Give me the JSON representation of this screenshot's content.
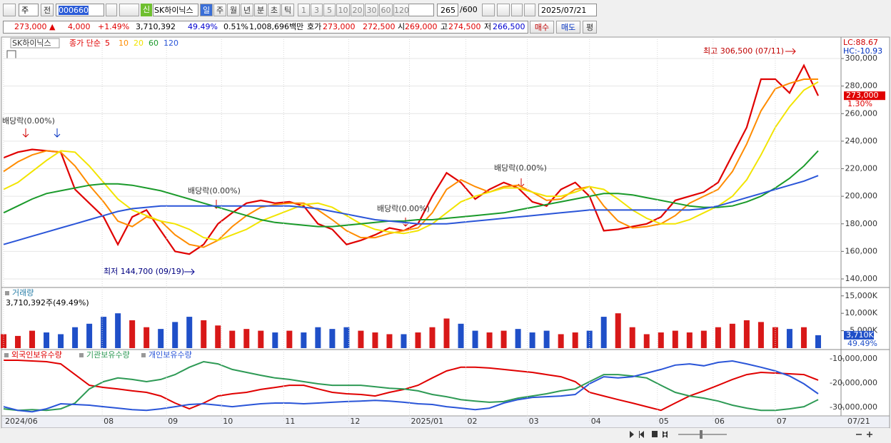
{
  "toolbar": {
    "market": "주",
    "kind": "전",
    "code": "000660",
    "badge": "신",
    "name": "SK하이닉스",
    "periods": [
      "일",
      "주",
      "월",
      "년",
      "분",
      "초",
      "틱"
    ],
    "intervals": [
      "1",
      "3",
      "5",
      "10",
      "20",
      "30",
      "60",
      "120"
    ],
    "count": "265",
    "max": "/600",
    "date": "2025/07/21"
  },
  "quote": {
    "price": "273,000 ▲",
    "change": "4,000",
    "rate": "+1.49%",
    "volume": "3,710,392",
    "volume_rate": "49.49%",
    "turnover": "0.51%",
    "amount": "1,008,696백만",
    "bid_label": "호가",
    "ask": "273,000",
    "bid": "272,500",
    "open_label": "시",
    "open": "269,000",
    "high_label": "고",
    "high": "274,500",
    "low_label": "저",
    "low": "266,500",
    "buy": "매수",
    "sell": "매도",
    "avg": "평"
  },
  "chart_data": [
    {
      "type": "line",
      "title": "SK하이닉스",
      "subtitle": "종가 단순",
      "lc": "LC:88.67",
      "hc": "HC:-10.93",
      "current_label": "273,000",
      "change_label": "1.30%",
      "annotations": [
        "최고 306,500 (07/11)",
        "최저 144,700 (09/19)",
        "배당락(0.00%)",
        "배당락(0.00%)",
        "배당락(0.00%)",
        "배당락(0.00%)"
      ],
      "xlim": [
        0,
        58.6
      ],
      "ylim": [
        134300,
        314000
      ],
      "yticks": [
        {
          "value": 140000,
          "label": "140,000"
        },
        {
          "value": 160000,
          "label": "160,000"
        },
        {
          "value": 180000,
          "label": "180,000"
        },
        {
          "value": 200000,
          "label": "200,000"
        },
        {
          "value": 220000,
          "label": "220,000"
        },
        {
          "value": 240000,
          "label": "240,000"
        },
        {
          "value": 260000,
          "label": "260,000"
        },
        {
          "value": 280000,
          "label": "280,000"
        },
        {
          "value": 300000,
          "label": "300,000"
        }
      ],
      "grid": true,
      "series": [
        {
          "name": "5",
          "color": "#e00000",
          "values": [
            228000,
            232000,
            234000,
            233000,
            232000,
            205000,
            195000,
            185000,
            165000,
            185000,
            190000,
            175000,
            160000,
            158000,
            165000,
            180000,
            188000,
            195000,
            197000,
            195000,
            196000,
            193000,
            180000,
            176000,
            165000,
            168000,
            172000,
            177000,
            175000,
            180000,
            200000,
            217000,
            210000,
            198000,
            205000,
            210000,
            206000,
            196000,
            193000,
            205000,
            210000,
            200000,
            175000,
            176000,
            178000,
            180000,
            185000,
            197000,
            200000,
            203000,
            210000,
            230000,
            250000,
            285000,
            285000,
            275000,
            295000,
            273000
          ]
        },
        {
          "name": "10",
          "color": "#ff8c00",
          "values": [
            218000,
            225000,
            230000,
            233000,
            232000,
            222000,
            208000,
            196000,
            182000,
            178000,
            185000,
            182000,
            172000,
            165000,
            163000,
            168000,
            178000,
            186000,
            192000,
            194000,
            195000,
            195000,
            190000,
            183000,
            175000,
            170000,
            170000,
            173000,
            175000,
            177000,
            188000,
            205000,
            212000,
            207000,
            203000,
            207000,
            208000,
            203000,
            197000,
            198000,
            205000,
            207000,
            193000,
            182000,
            177000,
            178000,
            180000,
            186000,
            195000,
            200000,
            205000,
            218000,
            238000,
            262000,
            278000,
            282000,
            285000,
            285000
          ]
        },
        {
          "name": "20",
          "color": "#f2e400",
          "values": [
            205000,
            210000,
            218000,
            226000,
            233000,
            232000,
            222000,
            210000,
            198000,
            190000,
            186000,
            182000,
            180000,
            176000,
            170000,
            168000,
            172000,
            176000,
            182000,
            186000,
            190000,
            194000,
            195000,
            192000,
            186000,
            180000,
            176000,
            174000,
            173000,
            175000,
            180000,
            188000,
            196000,
            200000,
            203000,
            206000,
            206000,
            203000,
            200000,
            200000,
            203000,
            207000,
            205000,
            198000,
            190000,
            184000,
            180000,
            180000,
            183000,
            188000,
            193000,
            200000,
            212000,
            230000,
            250000,
            265000,
            277000,
            283000
          ]
        },
        {
          "name": "60",
          "color": "#1a9a2a",
          "values": [
            188000,
            193000,
            198000,
            202000,
            204000,
            206000,
            208000,
            209000,
            209000,
            208000,
            206000,
            204000,
            201000,
            198000,
            195000,
            192000,
            189000,
            186000,
            183000,
            181000,
            180000,
            179000,
            178000,
            178000,
            179000,
            180000,
            181000,
            182000,
            182000,
            183000,
            183000,
            184000,
            185000,
            186000,
            187000,
            188000,
            190000,
            192000,
            194000,
            196000,
            198000,
            200000,
            202000,
            202000,
            201000,
            199000,
            197000,
            195000,
            193000,
            192000,
            192000,
            193000,
            196000,
            200000,
            206000,
            213000,
            222000,
            233000
          ]
        },
        {
          "name": "120",
          "color": "#2a55d8",
          "values": [
            165000,
            168000,
            171000,
            174000,
            177000,
            180000,
            183000,
            186000,
            189000,
            191000,
            192000,
            193000,
            193000,
            193000,
            193000,
            193000,
            193000,
            193000,
            193000,
            193000,
            193000,
            192000,
            191000,
            189000,
            187000,
            185000,
            183000,
            182000,
            181000,
            180000,
            180000,
            180000,
            181000,
            182000,
            183000,
            184000,
            185000,
            186000,
            187000,
            188000,
            189000,
            190000,
            190000,
            190000,
            190000,
            190000,
            190000,
            190000,
            190000,
            191000,
            193000,
            196000,
            199000,
            202000,
            205000,
            208000,
            211000,
            215000
          ]
        }
      ]
    },
    {
      "type": "bar",
      "title": "거래량",
      "subtitle": "3,710,392주(49.49%)",
      "current_label": "3,710K",
      "current_ratio": "49.49%",
      "up_color": "#d81818",
      "down_color": "#1f4fc8",
      "xlim": [
        0,
        58.6
      ],
      "ylim": [
        0,
        17000
      ],
      "yticks": [
        {
          "value": 5000,
          "label": "5,000K"
        },
        {
          "value": 10000,
          "label": "10,000K"
        },
        {
          "value": 15000,
          "label": "15,000K"
        }
      ],
      "values": [
        4000,
        3500,
        5000,
        4500,
        4000,
        6000,
        7000,
        9000,
        10000,
        8000,
        6000,
        5500,
        7500,
        9000,
        8000,
        6500,
        5000,
        5500,
        5000,
        4500,
        5000,
        4500,
        6000,
        5500,
        6000,
        5000,
        4500,
        4000,
        4000,
        4500,
        6000,
        8500,
        7000,
        5000,
        4500,
        5000,
        5500,
        4500,
        5000,
        4000,
        4500,
        5000,
        9000,
        10000,
        6000,
        4000,
        4500,
        5000,
        4500,
        5000,
        6000,
        7000,
        8000,
        7500,
        6000,
        5500,
        6000,
        3710
      ]
    },
    {
      "type": "line",
      "end_label": "07/21",
      "xlim": [
        0,
        58.6
      ],
      "ylim": [
        -33200000,
        -6800000
      ],
      "yticks": [
        {
          "value": -10000000,
          "label": "-10,000,000"
        },
        {
          "value": -20000000,
          "label": "-20,000,000"
        },
        {
          "value": -30000000,
          "label": "-30,000,000"
        }
      ],
      "xticks": [
        {
          "value": 0,
          "label": "2024/06"
        },
        {
          "value": 6.9,
          "label": "08"
        },
        {
          "value": 11.4,
          "label": "09"
        },
        {
          "value": 15.25,
          "label": "10"
        },
        {
          "value": 19.6,
          "label": "11"
        },
        {
          "value": 24.15,
          "label": "12"
        },
        {
          "value": 28.4,
          "label": "2025/01"
        },
        {
          "value": 32.35,
          "label": "02"
        },
        {
          "value": 36.65,
          "label": "03"
        },
        {
          "value": 41,
          "label": "04"
        },
        {
          "value": 45.75,
          "label": "05"
        },
        {
          "value": 49.65,
          "label": "06"
        },
        {
          "value": 54,
          "label": "07"
        }
      ],
      "series": [
        {
          "name": "외국인보유수량",
          "color": "#e00000",
          "values": [
            -10600000,
            -10600000,
            -10900000,
            -11200000,
            -12100000,
            -16500000,
            -20900000,
            -21800000,
            -22400000,
            -23200000,
            -23800000,
            -25300000,
            -28200000,
            -30600000,
            -28200000,
            -25300000,
            -24400000,
            -23800000,
            -22600000,
            -21800000,
            -20900000,
            -20900000,
            -22400000,
            -23800000,
            -24400000,
            -24700000,
            -25300000,
            -23800000,
            -22600000,
            -20900000,
            -17900000,
            -15000000,
            -13500000,
            -13500000,
            -13800000,
            -14400000,
            -15000000,
            -15600000,
            -16500000,
            -17400000,
            -19400000,
            -23800000,
            -25300000,
            -26800000,
            -28200000,
            -29700000,
            -31200000,
            -28200000,
            -25300000,
            -23200000,
            -20900000,
            -18500000,
            -16500000,
            -15600000,
            -15900000,
            -16200000,
            -16500000,
            -18800000
          ]
        },
        {
          "name": "기관보유수량",
          "color": "#2e9a55",
          "values": [
            -30600000,
            -31200000,
            -30900000,
            -31200000,
            -30600000,
            -28200000,
            -22400000,
            -19400000,
            -17900000,
            -18500000,
            -19400000,
            -18500000,
            -16500000,
            -13500000,
            -11200000,
            -12100000,
            -14400000,
            -15600000,
            -16800000,
            -17900000,
            -18500000,
            -19400000,
            -20300000,
            -20900000,
            -20900000,
            -20900000,
            -21500000,
            -22100000,
            -22400000,
            -23200000,
            -24700000,
            -25600000,
            -26800000,
            -27400000,
            -27900000,
            -27600000,
            -26200000,
            -25300000,
            -24400000,
            -23200000,
            -22400000,
            -19400000,
            -16500000,
            -16500000,
            -17100000,
            -17900000,
            -20900000,
            -23800000,
            -25300000,
            -26200000,
            -27400000,
            -29100000,
            -30300000,
            -31200000,
            -31200000,
            -30600000,
            -29700000,
            -26800000
          ]
        },
        {
          "name": "개인보유수량",
          "color": "#2a55d8",
          "values": [
            -29700000,
            -31200000,
            -31800000,
            -30600000,
            -28500000,
            -28800000,
            -29100000,
            -29700000,
            -30300000,
            -30900000,
            -31200000,
            -30600000,
            -29700000,
            -28800000,
            -28500000,
            -29100000,
            -29700000,
            -29100000,
            -28500000,
            -28200000,
            -28200000,
            -28500000,
            -28200000,
            -27900000,
            -27600000,
            -27400000,
            -27100000,
            -27400000,
            -27900000,
            -28500000,
            -28800000,
            -29700000,
            -30300000,
            -30900000,
            -30300000,
            -28200000,
            -26800000,
            -25900000,
            -25600000,
            -25300000,
            -24700000,
            -20300000,
            -17400000,
            -17900000,
            -17400000,
            -15900000,
            -14400000,
            -12600000,
            -12100000,
            -12900000,
            -11500000,
            -10900000,
            -12100000,
            -13500000,
            -15000000,
            -17100000,
            -20300000,
            -24400000
          ]
        }
      ]
    }
  ]
}
